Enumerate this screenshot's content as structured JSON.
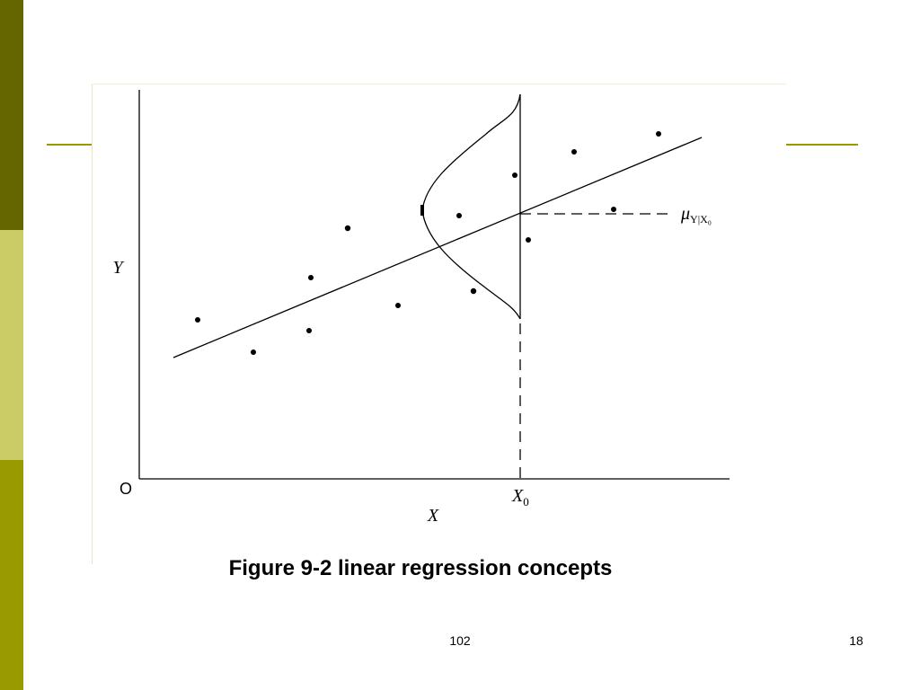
{
  "diagram": {
    "y_axis_label": "Y",
    "x_axis_label": "X",
    "origin_label": "O",
    "x0_label": {
      "base": "X",
      "sub": "0"
    },
    "mean_label": {
      "base": "μ",
      "sub": "Y|X₀"
    }
  },
  "caption": "Figure 9-2 linear regression concepts",
  "footer": {
    "center": "102",
    "page": "18"
  }
}
